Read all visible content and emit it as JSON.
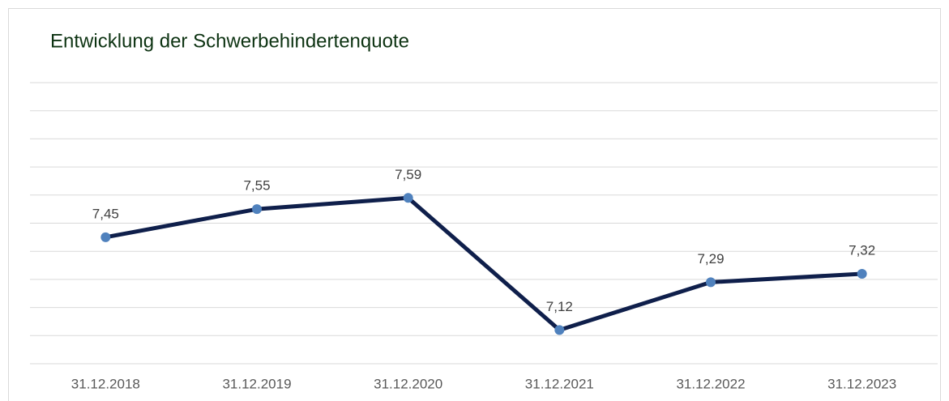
{
  "chart_data": {
    "type": "line",
    "title": "Entwicklung  der Schwerbehindertenquote",
    "categories": [
      "31.12.2018",
      "31.12.2019",
      "31.12.2020",
      "31.12.2021",
      "31.12.2022",
      "31.12.2023"
    ],
    "series": [
      {
        "color": "#0f1f4b",
        "marker_color": "#4f81bd",
        "values": [
          7.45,
          7.55,
          7.59,
          7.12,
          7.29,
          7.32
        ],
        "value_labels": [
          "7,45",
          "7,55",
          "7,59",
          "7,12",
          "7,29",
          "7,32"
        ]
      }
    ],
    "ylim": [
      7.0,
      8.0
    ],
    "yticks": [
      7.0,
      7.1,
      7.2,
      7.3,
      7.4,
      7.5,
      7.6,
      7.7,
      7.8,
      7.9,
      8.0
    ],
    "grid": true
  }
}
